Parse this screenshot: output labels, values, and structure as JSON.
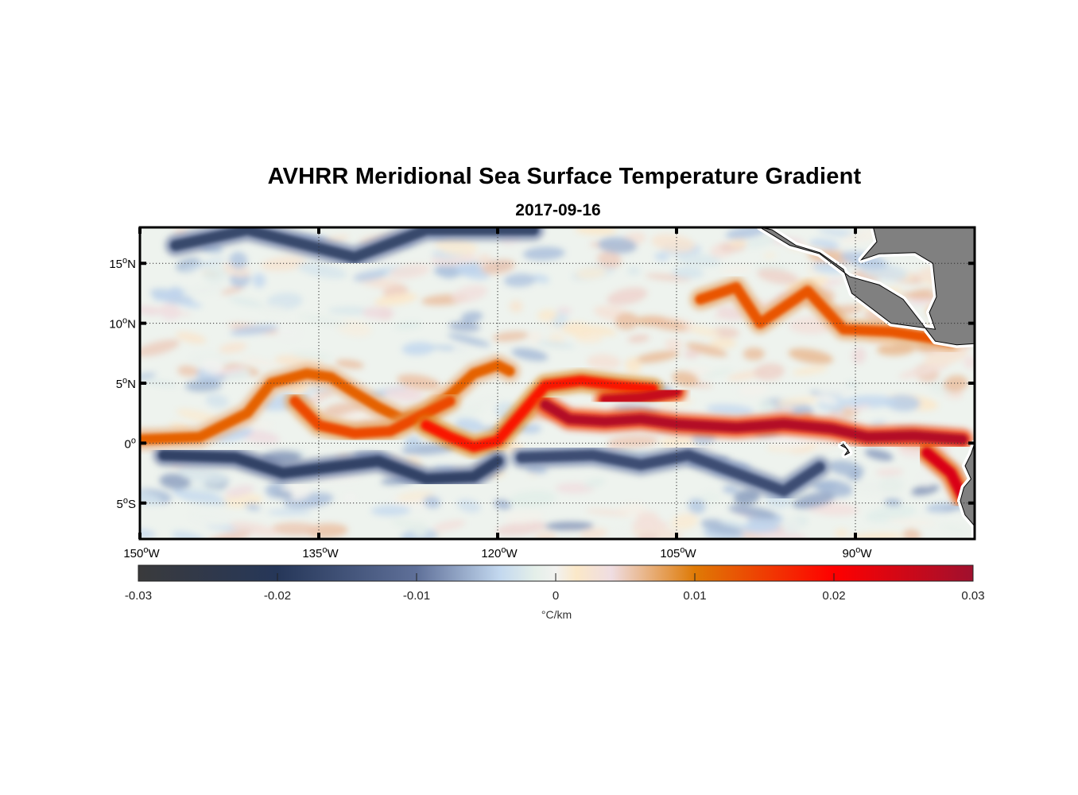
{
  "chart_data": {
    "type": "heatmap",
    "title": "AVHRR Meridional Sea Surface Temperature Gradient",
    "subtitle": "2017-09-16",
    "xlabel": "",
    "ylabel": "",
    "xlim": [
      -150,
      -80
    ],
    "ylim": [
      -8,
      18
    ],
    "grid": true,
    "x_ticks": [
      {
        "value": -150,
        "label": "150",
        "suffix": "W"
      },
      {
        "value": -135,
        "label": "135",
        "suffix": "W"
      },
      {
        "value": -120,
        "label": "120",
        "suffix": "W"
      },
      {
        "value": -105,
        "label": "105",
        "suffix": "W"
      },
      {
        "value": -90,
        "label": "90",
        "suffix": "W"
      }
    ],
    "y_ticks": [
      {
        "value": 15,
        "label": "15",
        "suffix": "N"
      },
      {
        "value": 10,
        "label": "10",
        "suffix": "N"
      },
      {
        "value": 5,
        "label": "5",
        "suffix": "N"
      },
      {
        "value": 0,
        "label": "0",
        "suffix": ""
      },
      {
        "value": -5,
        "label": "5",
        "suffix": "S"
      }
    ],
    "colorbar": {
      "range": [
        -0.03,
        0.03
      ],
      "ticks": [
        -0.03,
        -0.02,
        -0.01,
        0,
        0.01,
        0.02,
        0.03
      ],
      "tick_labels": [
        "-0.03",
        "-0.02",
        "-0.01",
        "0",
        "0.01",
        "0.02",
        "0.03"
      ],
      "unit": "°C/km",
      "placement": "bottom",
      "stops": [
        {
          "value": -0.03,
          "color": "#3a3a3c"
        },
        {
          "value": -0.02,
          "color": "#263759"
        },
        {
          "value": -0.01,
          "color": "#5f7099"
        },
        {
          "value": -0.004,
          "color": "#c3d8ef"
        },
        {
          "value": -0.0015,
          "color": "#e4efe9"
        },
        {
          "value": 0,
          "color": "#f2f2f0"
        },
        {
          "value": 0.0015,
          "color": "#fbe8c8"
        },
        {
          "value": 0.004,
          "color": "#efdde2"
        },
        {
          "value": 0.01,
          "color": "#df7a05"
        },
        {
          "value": 0.02,
          "color": "#ff0000"
        },
        {
          "value": 0.03,
          "color": "#a0102e"
        }
      ]
    },
    "features": [
      {
        "name": "equatorial front north (warm)",
        "type": "positive",
        "points": [
          [
            -150,
            0.3
          ],
          [
            -145,
            0.5
          ],
          [
            -141,
            2.5
          ],
          [
            -139,
            5.0
          ],
          [
            -136,
            5.8
          ],
          [
            -134,
            5.5
          ],
          [
            -132,
            4.2
          ],
          [
            -130,
            3.0
          ],
          [
            -128,
            2.0
          ],
          [
            -126,
            2.5
          ],
          [
            -124,
            4.0
          ],
          [
            -122,
            5.8
          ],
          [
            -120,
            6.5
          ],
          [
            -119,
            6.0
          ]
        ],
        "value": 0.012
      },
      {
        "name": "equatorial front arc",
        "type": "positive",
        "points": [
          [
            -137,
            3.5
          ],
          [
            -135,
            1.5
          ],
          [
            -132,
            0.8
          ],
          [
            -129,
            1.0
          ],
          [
            -126,
            2.5
          ],
          [
            -124,
            3.5
          ]
        ],
        "value": 0.014
      },
      {
        "name": "tropical instability wave crest",
        "type": "positive",
        "points": [
          [
            -126,
            1.5
          ],
          [
            -124,
            0.5
          ],
          [
            -122,
            -0.3
          ],
          [
            -120,
            0.2
          ],
          [
            -118,
            2.5
          ],
          [
            -116,
            4.8
          ],
          [
            -113,
            5.2
          ],
          [
            -110,
            4.8
          ],
          [
            -107,
            4.5
          ]
        ],
        "value": 0.018
      },
      {
        "name": "cold tongue front",
        "type": "positive",
        "points": [
          [
            -116,
            3.2
          ],
          [
            -114,
            2.0
          ],
          [
            -111,
            1.8
          ],
          [
            -108,
            2.0
          ],
          [
            -105,
            1.6
          ],
          [
            -100,
            1.3
          ],
          [
            -96,
            1.6
          ],
          [
            -92,
            1.2
          ],
          [
            -89,
            0.5
          ],
          [
            -85,
            0.6
          ],
          [
            -81,
            0.3
          ]
        ],
        "value": 0.028
      },
      {
        "name": "cold tongue upper branch",
        "type": "positive",
        "points": [
          [
            -111,
            3.6
          ],
          [
            -108,
            3.8
          ],
          [
            -105,
            4.3
          ]
        ],
        "value": 0.026
      },
      {
        "name": "south coast front",
        "type": "positive",
        "points": [
          [
            -84,
            -0.8
          ],
          [
            -82,
            -2.5
          ],
          [
            -81,
            -4.5
          ]
        ],
        "value": 0.024
      },
      {
        "name": "coastal warm patches",
        "type": "positive",
        "points": [
          [
            -103,
            12
          ],
          [
            -100,
            13
          ],
          [
            -98,
            10
          ],
          [
            -94,
            12.7
          ],
          [
            -91,
            9.5
          ],
          [
            -87,
            9.3
          ],
          [
            -82,
            8.5
          ]
        ],
        "value": 0.013
      },
      {
        "name": "southern negative band",
        "type": "negative",
        "points": [
          [
            -148,
            -1.0
          ],
          [
            -142,
            -1.2
          ],
          [
            -138,
            -2.5
          ],
          [
            -134,
            -2.0
          ],
          [
            -130,
            -1.5
          ],
          [
            -126,
            -3.0
          ],
          [
            -122,
            -2.8
          ],
          [
            -120,
            -1.5
          ]
        ],
        "value": -0.018
      },
      {
        "name": "southern negative band east",
        "type": "negative",
        "points": [
          [
            -118,
            -1.2
          ],
          [
            -112,
            -1.0
          ],
          [
            -108,
            -1.8
          ],
          [
            -104,
            -1.0
          ],
          [
            -100,
            -2.5
          ],
          [
            -96,
            -4.0
          ],
          [
            -93,
            -2.0
          ]
        ],
        "value": -0.016
      },
      {
        "name": "northern negative streaks",
        "type": "negative",
        "points": [
          [
            -147,
            16.5
          ],
          [
            -141,
            17.8
          ],
          [
            -132,
            15.5
          ],
          [
            -126,
            17.8
          ],
          [
            -117,
            17.8
          ]
        ],
        "value": -0.017
      }
    ],
    "land": [
      {
        "name": "Central America / Mexico",
        "lonlat": [
          [
            -98,
            18
          ],
          [
            -95.5,
            16.5
          ],
          [
            -93,
            15.8
          ],
          [
            -90.5,
            13.9
          ],
          [
            -88,
            13.2
          ],
          [
            -86,
            12.0
          ],
          [
            -84.6,
            10.2
          ],
          [
            -83.3,
            8.5
          ],
          [
            -81.5,
            8.2
          ],
          [
            -80,
            8.3
          ],
          [
            -80,
            18
          ],
          [
            -88.5,
            18
          ],
          [
            -88.2,
            16.8
          ],
          [
            -89.5,
            15.3
          ],
          [
            -88,
            15.8
          ],
          [
            -85,
            15.9
          ],
          [
            -83.5,
            15.0
          ],
          [
            -83.2,
            12.2
          ],
          [
            -83.8,
            10.9
          ],
          [
            -83.3,
            9.5
          ],
          [
            -87,
            10
          ],
          [
            -90.3,
            12.5
          ],
          [
            -91,
            14.5
          ],
          [
            -93,
            15.9
          ],
          [
            -95,
            16.5
          ],
          [
            -97,
            17.8
          ]
        ]
      },
      {
        "name": "Galapagos",
        "lonlat": [
          [
            -91.2,
            -0.2
          ],
          [
            -90.8,
            -0.4
          ],
          [
            -90.5,
            -0.8
          ],
          [
            -90.9,
            -1.0
          ],
          [
            -90.6,
            -0.6
          ],
          [
            -91.0,
            -0.1
          ]
        ]
      },
      {
        "name": "South America coast",
        "lonlat": [
          [
            -80,
            0.0
          ],
          [
            -80.3,
            -0.9
          ],
          [
            -80.8,
            -1.9
          ],
          [
            -80.3,
            -3.0
          ],
          [
            -80.9,
            -3.7
          ],
          [
            -81.2,
            -4.8
          ],
          [
            -80.8,
            -6.0
          ],
          [
            -80.1,
            -6.8
          ],
          [
            -79.5,
            -7.9
          ],
          [
            -80,
            -8
          ],
          [
            -80,
            0.0
          ]
        ]
      }
    ]
  }
}
